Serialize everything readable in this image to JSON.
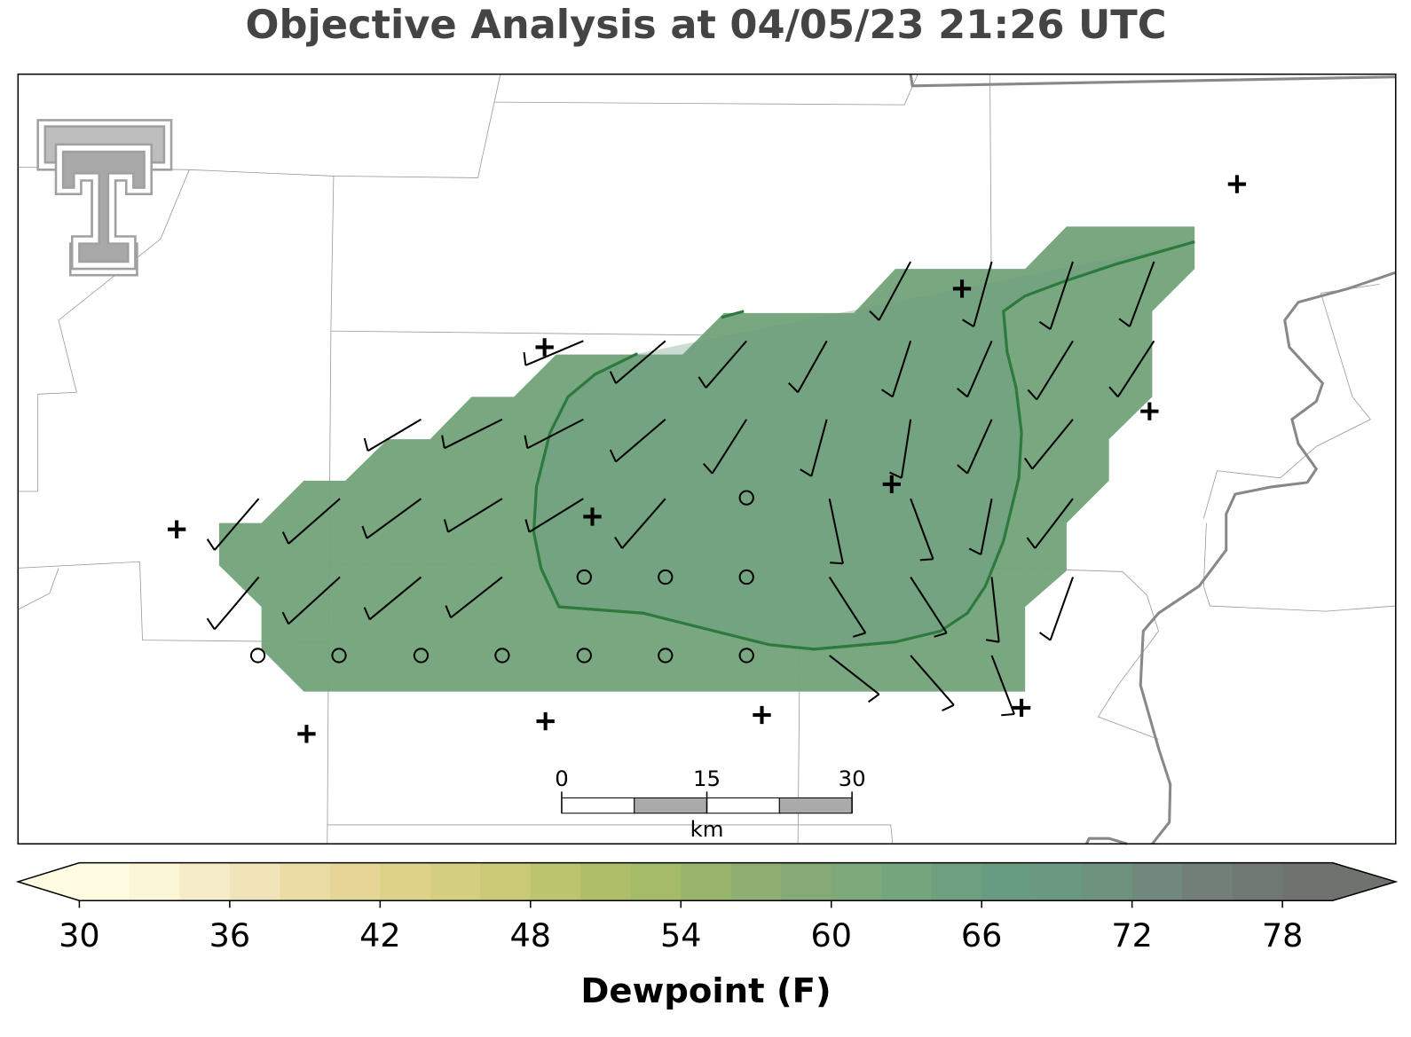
{
  "title": "Objective Analysis at 04/05/23 21:26 UTC",
  "scale_bar": {
    "ticks": [
      0,
      15,
      30
    ],
    "unit": "km"
  },
  "colorbar": {
    "label": "Dewpoint (F)",
    "lim": [
      30,
      80
    ],
    "ticks": [
      30,
      36,
      42,
      48,
      54,
      60,
      66,
      72,
      78
    ],
    "colors": [
      "#fefbe0",
      "#fbf6d6",
      "#f5edc8",
      "#f0e4b8",
      "#ebdca6",
      "#e5d696",
      "#ddd288",
      "#d4ce80",
      "#c9c976",
      "#bcc46e",
      "#afbf69",
      "#a4bb68",
      "#99b56c",
      "#8faf72",
      "#85aa76",
      "#7ca87a",
      "#74a57c",
      "#6da07e",
      "#689c80",
      "#6a9880",
      "#6d937f",
      "#70897c",
      "#717f77",
      "#707872",
      "#6e736d"
    ]
  }
}
